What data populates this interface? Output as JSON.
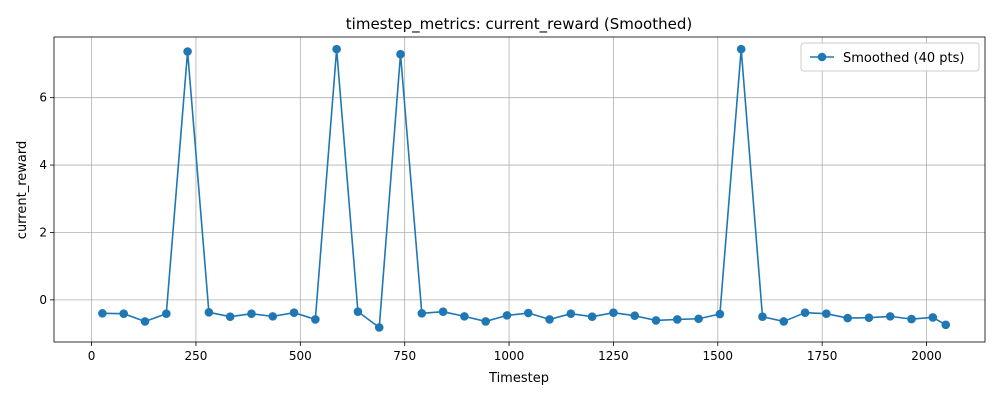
{
  "chart_data": {
    "type": "line",
    "title": "timestep_metrics: current_reward (Smoothed)",
    "xlabel": "Timestep",
    "ylabel": "current_reward",
    "xlim": [
      -90,
      2140
    ],
    "ylim": [
      -1.25,
      7.8
    ],
    "xticks": [
      0,
      250,
      500,
      750,
      1000,
      1250,
      1500,
      1750,
      2000
    ],
    "yticks": [
      0,
      2,
      4,
      6
    ],
    "grid": true,
    "legend_position": "top-right",
    "series": [
      {
        "name": "Smoothed (40 pts)",
        "color": "#1f77b4",
        "marker": "circle",
        "x": [
          26,
          77,
          128,
          179,
          230,
          281,
          332,
          383,
          434,
          485,
          536,
          587,
          638,
          689,
          740,
          791,
          842,
          893,
          944,
          995,
          1046,
          1097,
          1148,
          1199,
          1250,
          1301,
          1352,
          1403,
          1454,
          1505,
          1556,
          1607,
          1658,
          1709,
          1760,
          1811,
          1862,
          1913,
          1964,
          2015,
          2046
        ],
        "y": [
          -0.4,
          -0.41,
          -0.64,
          -0.41,
          7.37,
          -0.37,
          -0.5,
          -0.41,
          -0.49,
          -0.38,
          -0.58,
          7.44,
          -0.35,
          -0.82,
          7.29,
          -0.4,
          -0.35,
          -0.49,
          -0.64,
          -0.46,
          -0.39,
          -0.58,
          -0.41,
          -0.5,
          -0.38,
          -0.47,
          -0.61,
          -0.58,
          -0.56,
          -0.42,
          7.44,
          -0.5,
          -0.64,
          -0.38,
          -0.41,
          -0.54,
          -0.53,
          -0.49,
          -0.57,
          -0.52,
          -0.74
        ]
      }
    ]
  }
}
